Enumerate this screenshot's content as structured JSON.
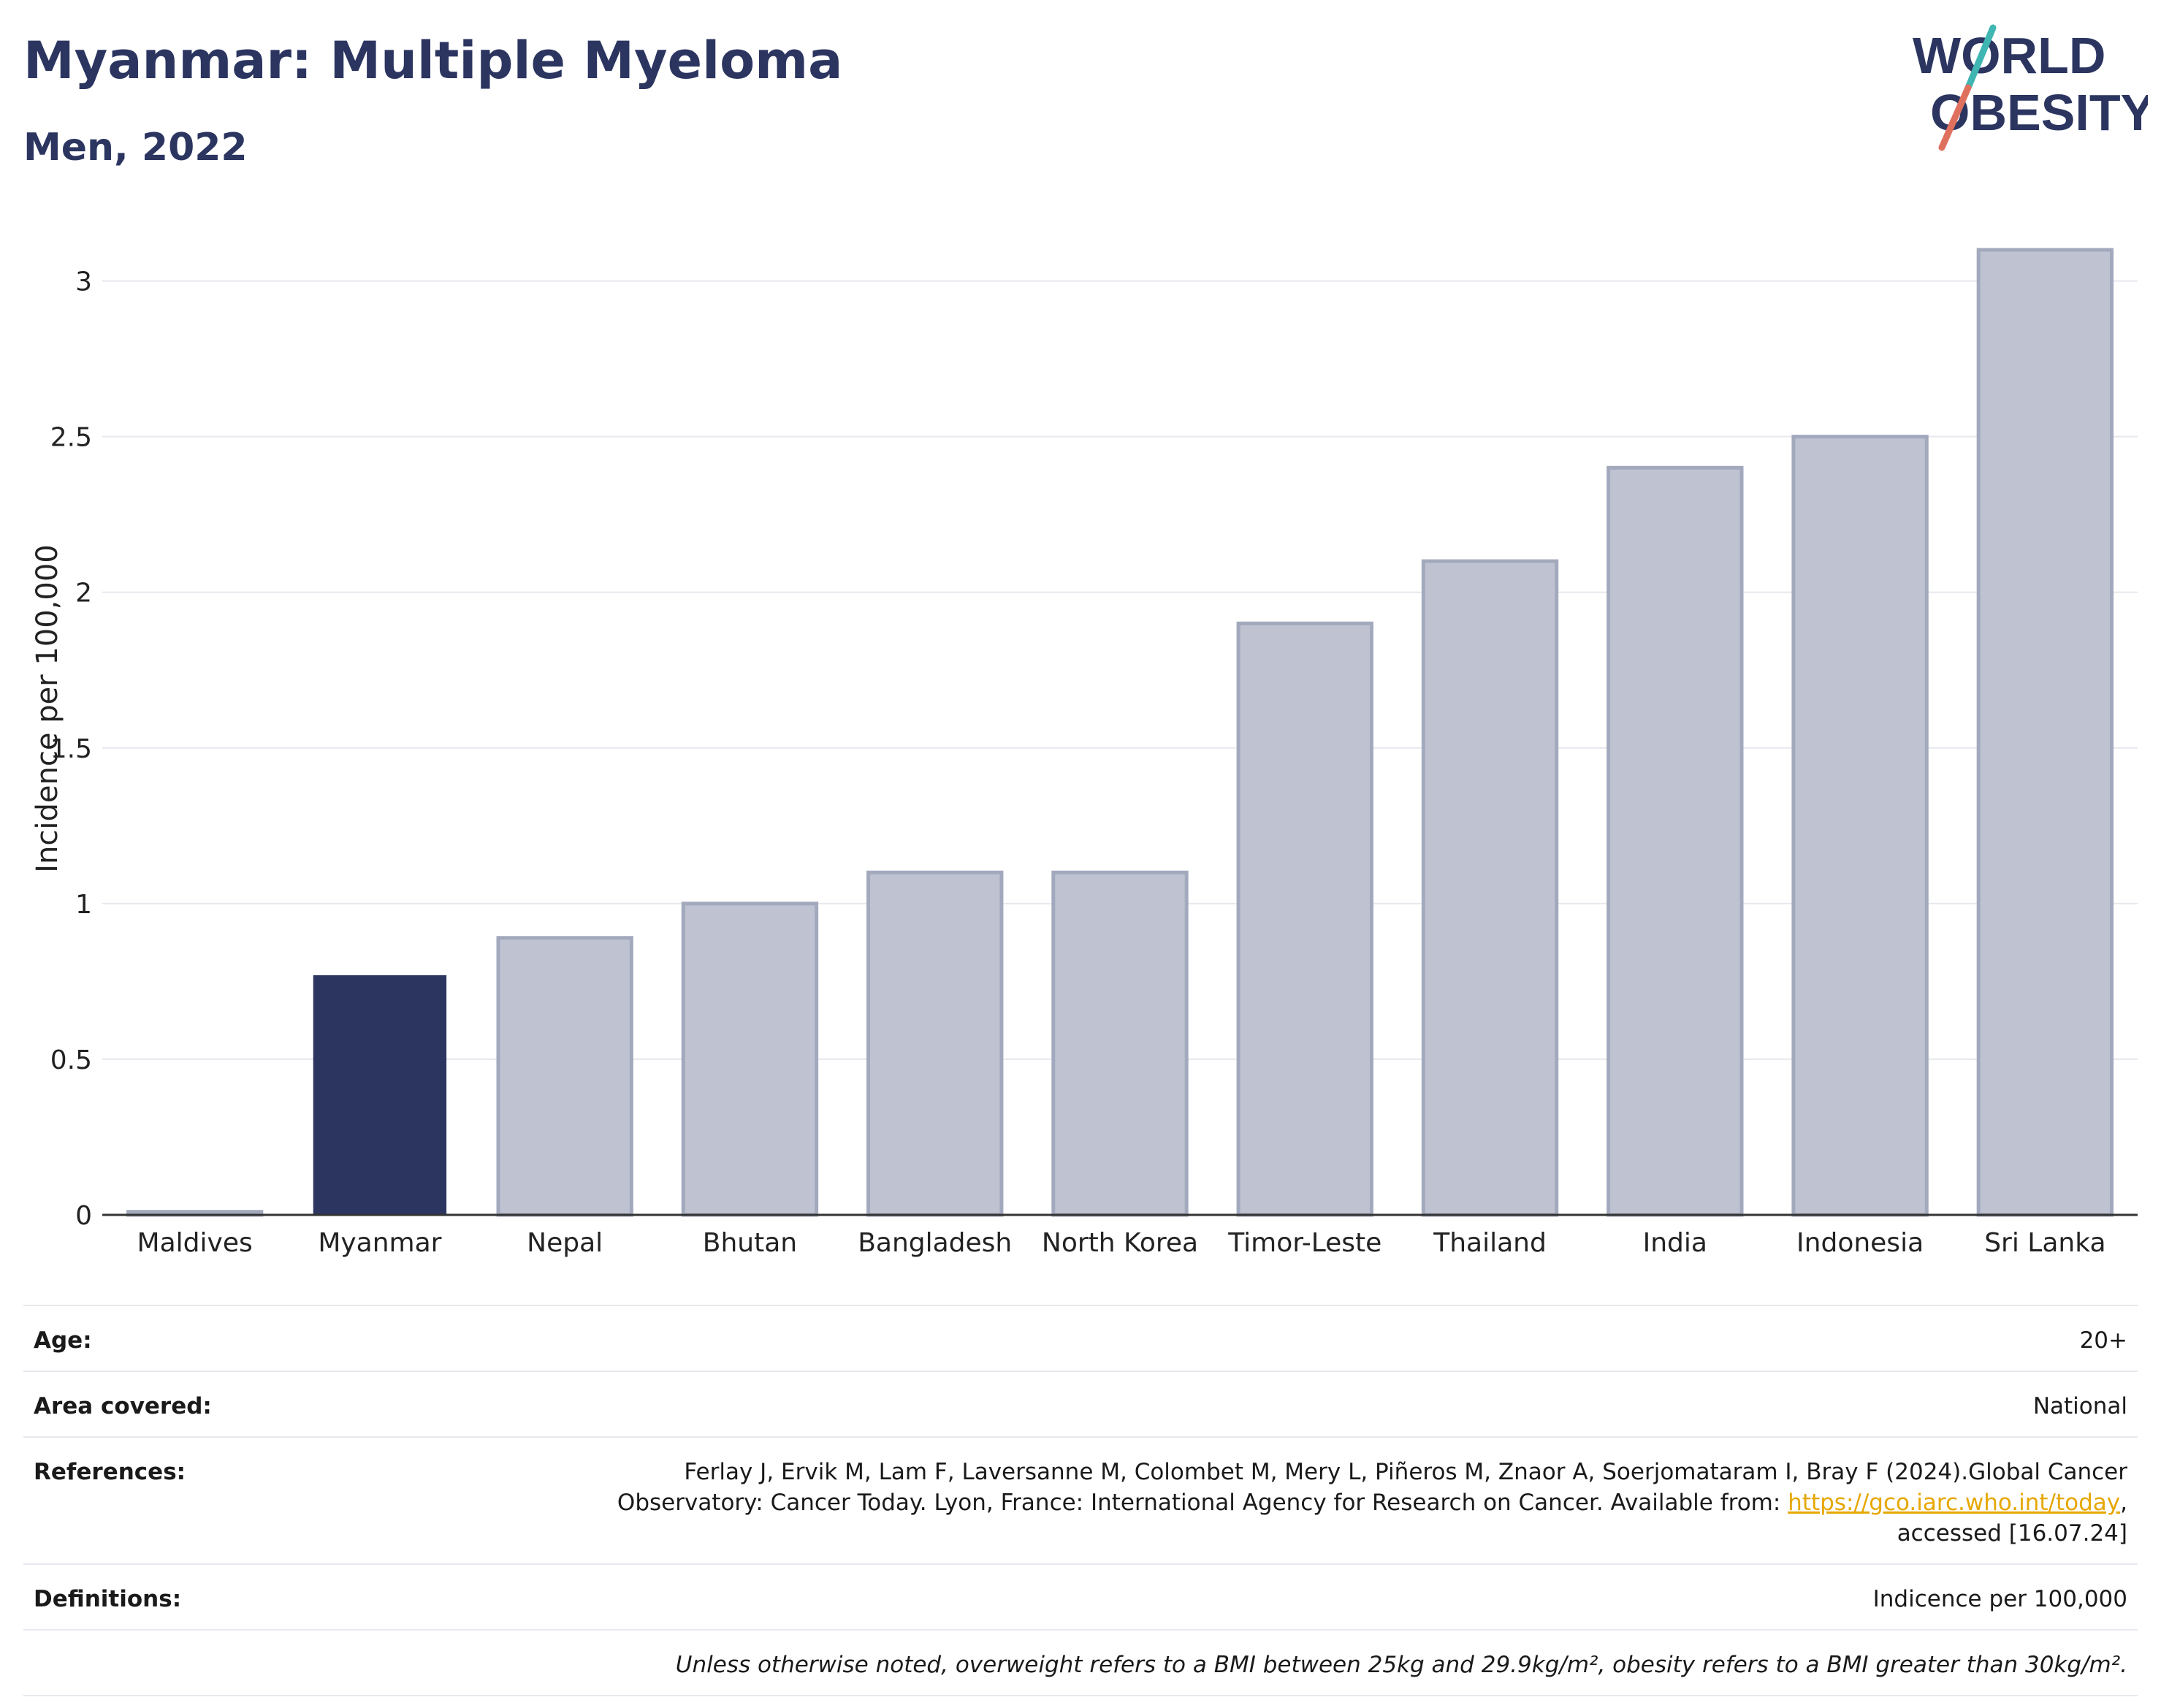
{
  "header": {
    "title": "Myanmar: Multiple Myeloma",
    "subtitle": "Men, 2022"
  },
  "logo": {
    "line1": "WORLD",
    "line2": "OBESITY",
    "colors": {
      "text": "#2b3560",
      "slash_top": "#3fb6b2",
      "slash_bottom": "#e0705e"
    }
  },
  "chart_data": {
    "type": "bar",
    "ylabel": "Incidence per 100,000",
    "xlabel": "",
    "categories": [
      "Maldives",
      "Myanmar",
      "Nepal",
      "Bhutan",
      "Bangladesh",
      "North Korea",
      "Timor-Leste",
      "Thailand",
      "India",
      "Indonesia",
      "Sri Lanka"
    ],
    "values": [
      0.01,
      0.77,
      0.89,
      1.0,
      1.1,
      1.1,
      1.9,
      2.1,
      2.4,
      2.5,
      3.1
    ],
    "highlight": "Myanmar",
    "ylim": [
      0,
      3.1
    ],
    "yticks": [
      0,
      0.5,
      1,
      1.5,
      2,
      2.5,
      3
    ],
    "ytick_labels": [
      "0",
      "0.5",
      "1",
      "1.5",
      "2",
      "2.5",
      "3"
    ],
    "grid": true,
    "colors": {
      "highlight": "#2b3560",
      "other": "#bfc3d1",
      "other_stroke": "#a3a9bd",
      "grid": "#e6e8ee",
      "axis": "#333333"
    }
  },
  "info": {
    "age_label": "Age:",
    "age_value": "20+",
    "area_label": "Area covered:",
    "area_value": "National",
    "references_label": "References:",
    "references_text_1": "Ferlay J, Ervik M, Lam F, Laversanne M, Colombet M, Mery L, Piñeros M, Znaor A, Soerjomataram I, Bray F (2024).Global Cancer",
    "references_text_2": "Observatory: Cancer Today. Lyon, France: International Agency for Research on Cancer. Available from: ",
    "references_link": "https://gco.iarc.who.int/today",
    "references_text_3": ",",
    "references_text_4": "accessed [16.07.24]",
    "definitions_label": "Definitions:",
    "definitions_value": "Indicence per 100,000",
    "note": "Unless otherwise noted, overweight refers to a BMI between 25kg and 29.9kg/m², obesity refers to a BMI greater than 30kg/m²."
  }
}
